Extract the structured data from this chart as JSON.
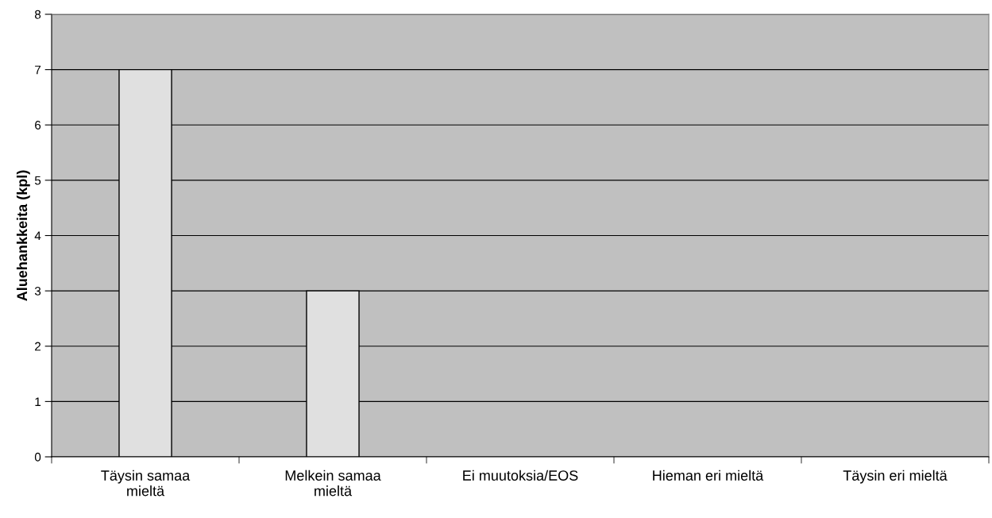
{
  "chart_data": {
    "type": "bar",
    "ylabel": "Aluehankkeita (kpl)",
    "categories": [
      "Täysin samaa\nmieltä",
      "Melkein samaa\nmieltä",
      "Ei muutoksia/EOS",
      "Hieman eri mieltä",
      "Täysin eri mieltä"
    ],
    "values": [
      7,
      3,
      0,
      0,
      0
    ],
    "color": "#e0e0e0",
    "ylim": [
      0,
      8
    ],
    "yticks": [
      0,
      1,
      2,
      3,
      4,
      5,
      6,
      7,
      8
    ],
    "grid": "y",
    "legend": false
  }
}
